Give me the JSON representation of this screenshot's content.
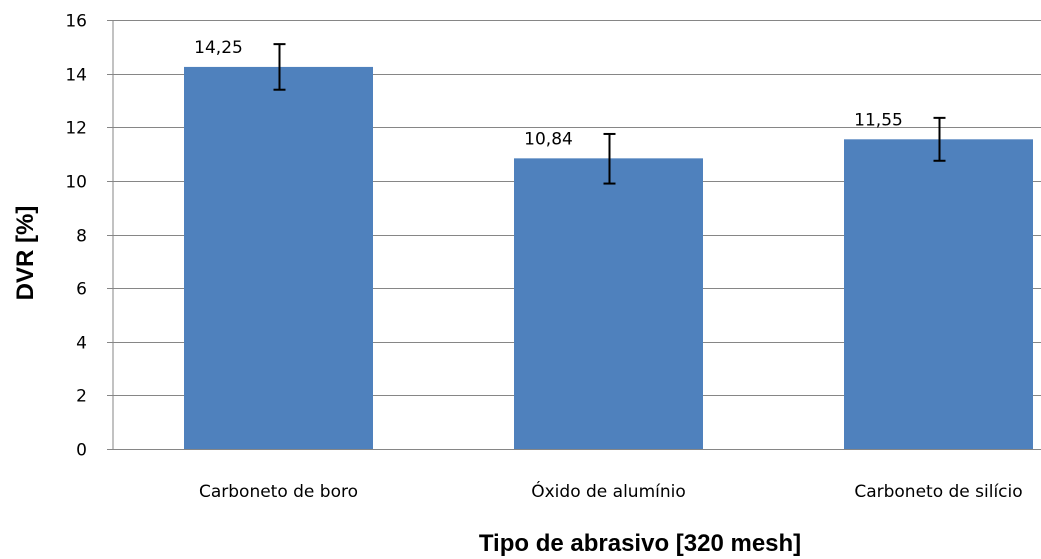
{
  "chart_data": {
    "type": "bar",
    "categories": [
      "Carboneto de boro",
      "Óxido de alumínio",
      "Carboneto de silício"
    ],
    "values": [
      14.25,
      10.84,
      11.55
    ],
    "value_labels": [
      "14,25",
      "10,84",
      "11,55"
    ],
    "error_high": [
      15.1,
      11.75,
      12.35
    ],
    "error_low": [
      13.4,
      9.9,
      10.75
    ],
    "xlabel": "Tipo de abrasivo [320 mesh]",
    "ylabel": "DVR [%]",
    "ylim": [
      0,
      16
    ],
    "yticks": [
      0,
      2,
      4,
      6,
      8,
      10,
      12,
      14,
      16
    ],
    "grid": true,
    "legend": false,
    "colors": {
      "bar": "#4F81BD",
      "grid": "#868686",
      "error_bar": "#000000"
    }
  }
}
